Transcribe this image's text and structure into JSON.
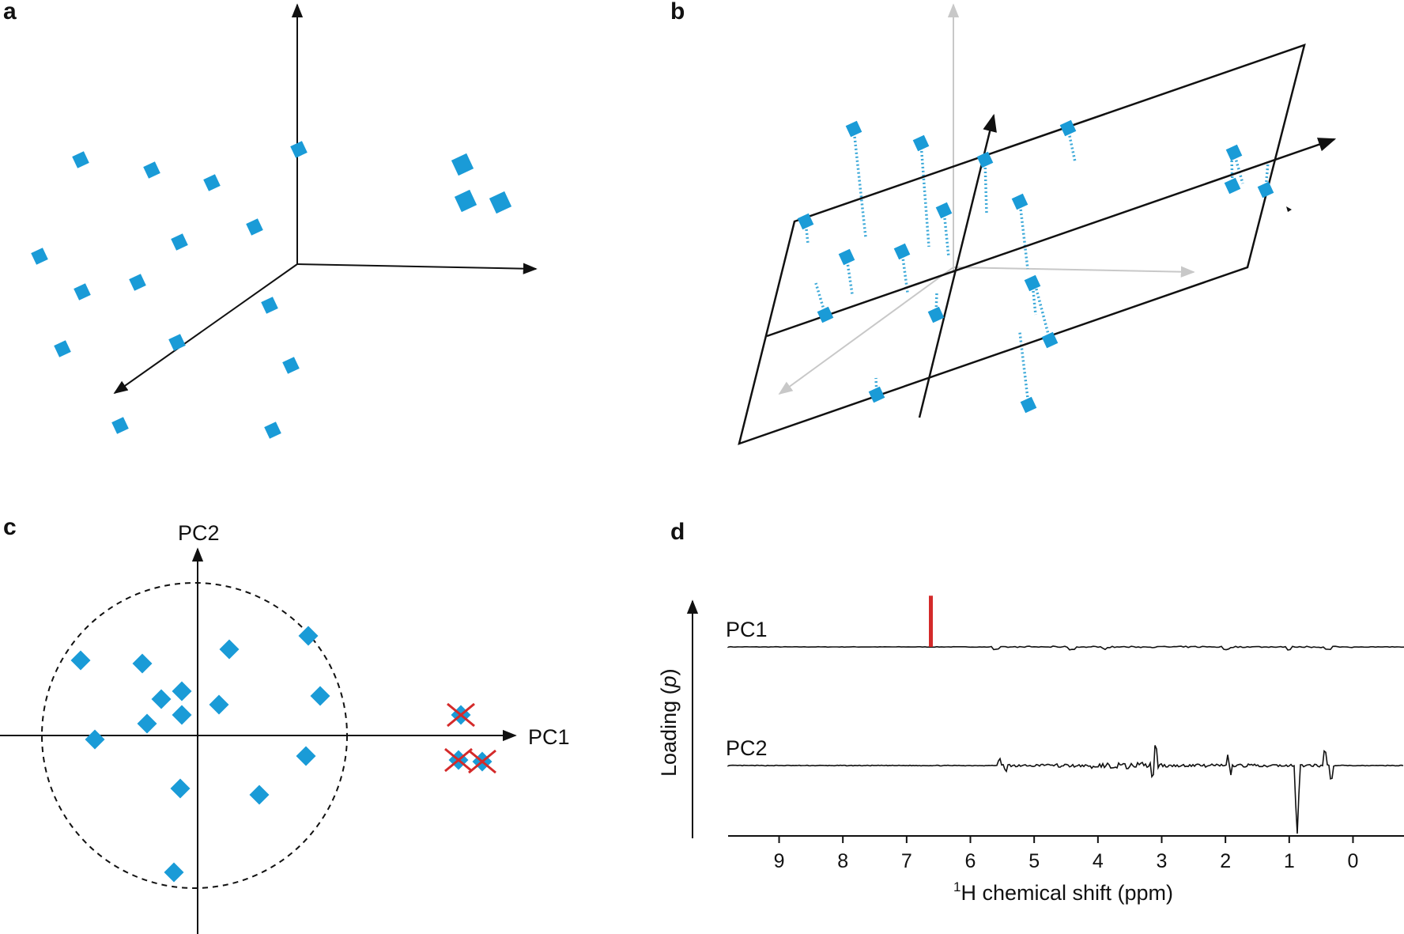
{
  "colors": {
    "point": "#1a9bd7",
    "dotted": "#3aa8d8",
    "axis": "#111111",
    "faded_axis": "#c8c8c8",
    "outlier_mark": "#d42a2a",
    "pc1_peak": "#d42a2a"
  },
  "panels": {
    "a": {
      "letter": "a"
    },
    "b": {
      "letter": "b"
    },
    "c": {
      "letter": "c",
      "xlabel": "PC1",
      "ylabel": "PC2"
    },
    "d": {
      "letter": "d",
      "ylabel_prefix": "Loading (",
      "ylabel_var": "p",
      "ylabel_suffix": ")",
      "xlabel_sup": "1",
      "xlabel": "H chemical shift (ppm)",
      "pc1_label": "PC1",
      "pc2_label": "PC2",
      "ticks": [
        "9",
        "8",
        "7",
        "6",
        "5",
        "4",
        "3",
        "2",
        "1",
        "0"
      ]
    }
  },
  "chart_data": {
    "type": "line",
    "title": "",
    "xlabel": "1H chemical shift (ppm)",
    "ylabel": "Loading (p)",
    "xlim": [
      9.8,
      -0.8
    ],
    "ticks": [
      9,
      8,
      7,
      6,
      5,
      4,
      3,
      2,
      1,
      0
    ],
    "series": [
      {
        "name": "PC1",
        "highlight_peak_ppm": 6.62,
        "features": [
          {
            "ppm": 6.62,
            "amp": 12
          },
          {
            "ppm": 5.6,
            "amp": -0.4
          },
          {
            "ppm": 4.4,
            "amp": -0.4
          },
          {
            "ppm": 3.9,
            "amp": -0.3
          },
          {
            "ppm": 2.0,
            "amp": -0.4
          },
          {
            "ppm": 1.0,
            "amp": -0.5
          },
          {
            "ppm": 0.4,
            "amp": -0.4
          }
        ]
      },
      {
        "name": "PC2",
        "features": [
          {
            "ppm": 5.55,
            "amp": 1.5
          },
          {
            "ppm": 5.45,
            "amp": -1.2
          },
          {
            "ppm": 3.1,
            "amp": 4.5
          },
          {
            "ppm": 3.15,
            "amp": -3.0
          },
          {
            "ppm": 1.95,
            "amp": 2.5
          },
          {
            "ppm": 1.93,
            "amp": -2.5
          },
          {
            "ppm": 0.88,
            "amp": -10.0
          },
          {
            "ppm": 0.85,
            "amp": -7.0
          },
          {
            "ppm": 0.45,
            "amp": 3.5
          },
          {
            "ppm": 0.35,
            "amp": -3.5
          }
        ]
      }
    ]
  }
}
